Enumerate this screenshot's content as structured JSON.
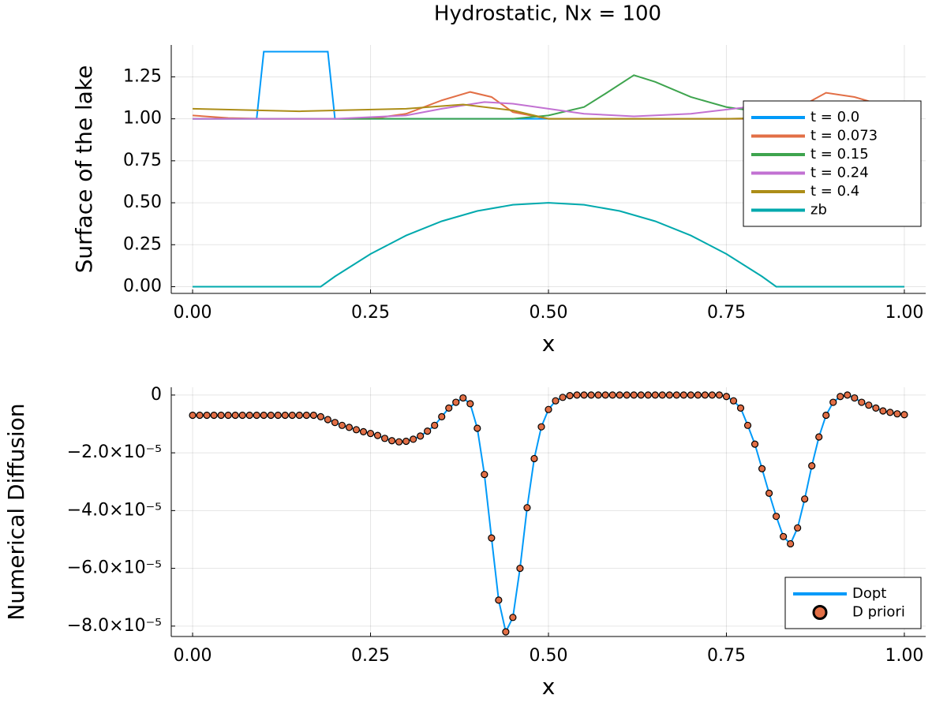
{
  "chart_data": [
    {
      "type": "line",
      "title": "Hydrostatic, Nx = 100",
      "xlabel": "x",
      "ylabel": "Surface of the lake",
      "xlim": [
        -0.03,
        1.03
      ],
      "ylim": [
        -0.04,
        1.44
      ],
      "xticks": [
        {
          "value": 0,
          "label": "0.00"
        },
        {
          "value": 0.25,
          "label": "0.25"
        },
        {
          "value": 0.5,
          "label": "0.50"
        },
        {
          "value": 0.75,
          "label": "0.75"
        },
        {
          "value": 1,
          "label": "1.00"
        }
      ],
      "yticks": [
        {
          "value": 0,
          "label": "0.00"
        },
        {
          "value": 0.25,
          "label": "0.25"
        },
        {
          "value": 0.5,
          "label": "0.50"
        },
        {
          "value": 0.75,
          "label": "0.75"
        },
        {
          "value": 1,
          "label": "1.00"
        },
        {
          "value": 1.25,
          "label": "1.25"
        }
      ],
      "grid": true,
      "legend": "topright",
      "series": [
        {
          "name": "t = 0.0",
          "color": "#009af9",
          "x": [
            0,
            0.09,
            0.1,
            0.19,
            0.2,
            1
          ],
          "values": [
            1,
            1,
            1.4,
            1.4,
            1,
            1
          ]
        },
        {
          "name": "t = 0.073",
          "color": "#e26f46",
          "x": [
            0,
            0.05,
            0.1,
            0.25,
            0.3,
            0.35,
            0.39,
            0.42,
            0.45,
            0.5,
            0.8,
            0.84,
            0.89,
            0.93,
            0.97,
            1
          ],
          "values": [
            1.02,
            1.005,
            1.0,
            1.0,
            1.03,
            1.11,
            1.16,
            1.13,
            1.04,
            1.0,
            1.0,
            1.04,
            1.155,
            1.13,
            1.08,
            1.04
          ]
        },
        {
          "name": "t = 0.15",
          "color": "#3ea44e",
          "x": [
            0,
            0.45,
            0.5,
            0.55,
            0.58,
            0.62,
            0.65,
            0.7,
            0.75,
            0.8,
            0.9,
            1
          ],
          "values": [
            1,
            1.0,
            1.02,
            1.07,
            1.15,
            1.26,
            1.22,
            1.13,
            1.07,
            1.04,
            1.02,
            1.01
          ]
        },
        {
          "name": "t = 0.24",
          "color": "#c271d2",
          "x": [
            0,
            0.2,
            0.3,
            0.35,
            0.41,
            0.45,
            0.5,
            0.55,
            0.62,
            0.7,
            0.8,
            0.9,
            1
          ],
          "values": [
            1.0,
            1.0,
            1.02,
            1.06,
            1.1,
            1.09,
            1.06,
            1.03,
            1.015,
            1.03,
            1.08,
            1.07,
            1.04
          ]
        },
        {
          "name": "t = 0.4",
          "color": "#ac8d18",
          "x": [
            0,
            0.15,
            0.3,
            0.38,
            0.45,
            0.5,
            0.75,
            0.85,
            0.95,
            1
          ],
          "values": [
            1.06,
            1.045,
            1.06,
            1.085,
            1.05,
            1.0,
            1.0,
            1.01,
            1.04,
            1.06
          ]
        },
        {
          "name": "zb",
          "color": "#00a9ad",
          "x": [
            0,
            0.18,
            0.2,
            0.25,
            0.3,
            0.35,
            0.4,
            0.45,
            0.5,
            0.55,
            0.6,
            0.65,
            0.7,
            0.75,
            0.8,
            0.82,
            1
          ],
          "values": [
            0,
            0,
            0.061,
            0.195,
            0.305,
            0.39,
            0.451,
            0.488,
            0.5,
            0.488,
            0.451,
            0.39,
            0.305,
            0.195,
            0.061,
            0,
            0
          ]
        }
      ]
    },
    {
      "type": "line",
      "xlabel": "x",
      "ylabel": "Numerical Diffusion",
      "xlim": [
        -0.03,
        1.03
      ],
      "ylim": [
        -8.36e-05,
        2.7e-06
      ],
      "xticks": [
        {
          "value": 0,
          "label": "0.00"
        },
        {
          "value": 0.25,
          "label": "0.25"
        },
        {
          "value": 0.5,
          "label": "0.50"
        },
        {
          "value": 0.75,
          "label": "0.75"
        },
        {
          "value": 1,
          "label": "1.00"
        }
      ],
      "yticks": [
        0,
        {
          "value": -2e-05,
          "label": "−2.0×10⁻⁵"
        },
        {
          "value": -4e-05,
          "label": "−4.0×10⁻⁵"
        },
        {
          "value": -6e-05,
          "label": "−6.0×10⁻⁵"
        },
        {
          "value": -8e-05,
          "label": "−8.0×10⁻⁵"
        }
      ],
      "grid": true,
      "legend": "bottomright",
      "x": [
        0,
        0.01,
        0.02,
        0.03,
        0.04,
        0.05,
        0.06,
        0.07,
        0.08,
        0.09,
        0.1,
        0.11,
        0.12,
        0.13,
        0.14,
        0.15,
        0.16,
        0.17,
        0.18,
        0.19,
        0.2,
        0.21,
        0.22,
        0.23,
        0.24,
        0.25,
        0.26,
        0.27,
        0.28,
        0.29,
        0.3,
        0.31,
        0.32,
        0.33,
        0.34,
        0.35,
        0.36,
        0.37,
        0.38,
        0.39,
        0.4,
        0.41,
        0.42,
        0.43,
        0.44,
        0.45,
        0.46,
        0.47,
        0.48,
        0.49,
        0.5,
        0.51,
        0.52,
        0.53,
        0.54,
        0.55,
        0.56,
        0.57,
        0.58,
        0.59,
        0.6,
        0.61,
        0.62,
        0.63,
        0.64,
        0.65,
        0.66,
        0.67,
        0.68,
        0.69,
        0.7,
        0.71,
        0.72,
        0.73,
        0.74,
        0.75,
        0.76,
        0.77,
        0.78,
        0.79,
        0.8,
        0.81,
        0.82,
        0.83,
        0.84,
        0.85,
        0.86,
        0.87,
        0.88,
        0.89,
        0.9,
        0.91,
        0.92,
        0.93,
        0.94,
        0.95,
        0.96,
        0.97,
        0.98,
        0.99,
        1
      ],
      "series": [
        {
          "name": "Dopt",
          "color": "#009af9",
          "mode": "lines",
          "values": [
            -7e-06,
            -7e-06,
            -7e-06,
            -7e-06,
            -7e-06,
            -7e-06,
            -7e-06,
            -7e-06,
            -7e-06,
            -7e-06,
            -7e-06,
            -7e-06,
            -7e-06,
            -7e-06,
            -7e-06,
            -7e-06,
            -7e-06,
            -7e-06,
            -7.5e-06,
            -8.5e-06,
            -9.5e-06,
            -1.05e-05,
            -1.12e-05,
            -1.2e-05,
            -1.27e-05,
            -1.33e-05,
            -1.4e-05,
            -1.5e-05,
            -1.58e-05,
            -1.62e-05,
            -1.6e-05,
            -1.53e-05,
            -1.42e-05,
            -1.25e-05,
            -1.05e-05,
            -7.5e-06,
            -4.5e-06,
            -2.5e-06,
            -1e-06,
            -3e-06,
            -1.15e-05,
            -2.75e-05,
            -4.95e-05,
            -7.1e-05,
            -8.2e-05,
            -7.7e-05,
            -6e-05,
            -3.9e-05,
            -2.2e-05,
            -1.1e-05,
            -5e-06,
            -2e-06,
            -8e-07,
            -2e-07,
            0,
            0,
            0,
            0,
            0,
            0,
            0,
            0,
            0,
            0,
            0,
            0,
            0,
            0,
            0,
            0,
            0,
            0,
            0,
            0,
            0,
            -5e-07,
            -2e-06,
            -4.5e-06,
            -1.05e-05,
            -1.7e-05,
            -2.55e-05,
            -3.4e-05,
            -4.2e-05,
            -4.9e-05,
            -5.15e-05,
            -4.6e-05,
            -3.6e-05,
            -2.45e-05,
            -1.45e-05,
            -7e-06,
            -2.5e-06,
            -5e-07,
            0,
            -1e-06,
            -2.5e-06,
            -3.5e-06,
            -4.5e-06,
            -5.5e-06,
            -6e-06,
            -6.5e-06,
            -6.8e-06
          ]
        },
        {
          "name": "D priori",
          "color": "#e26f46",
          "mode": "markers",
          "values": [
            -7e-06,
            -7e-06,
            -7e-06,
            -7e-06,
            -7e-06,
            -7e-06,
            -7e-06,
            -7e-06,
            -7e-06,
            -7e-06,
            -7e-06,
            -7e-06,
            -7e-06,
            -7e-06,
            -7e-06,
            -7e-06,
            -7e-06,
            -7e-06,
            -7.5e-06,
            -8.5e-06,
            -9.5e-06,
            -1.05e-05,
            -1.12e-05,
            -1.2e-05,
            -1.27e-05,
            -1.33e-05,
            -1.4e-05,
            -1.5e-05,
            -1.58e-05,
            -1.62e-05,
            -1.6e-05,
            -1.53e-05,
            -1.42e-05,
            -1.25e-05,
            -1.05e-05,
            -7.5e-06,
            -4.5e-06,
            -2.5e-06,
            -1e-06,
            -3e-06,
            -1.15e-05,
            -2.75e-05,
            -4.95e-05,
            -7.1e-05,
            -8.2e-05,
            -7.7e-05,
            -6e-05,
            -3.9e-05,
            -2.2e-05,
            -1.1e-05,
            -5e-06,
            -2e-06,
            -8e-07,
            -2e-07,
            0,
            0,
            0,
            0,
            0,
            0,
            0,
            0,
            0,
            0,
            0,
            0,
            0,
            0,
            0,
            0,
            0,
            0,
            0,
            0,
            0,
            -5e-07,
            -2e-06,
            -4.5e-06,
            -1.05e-05,
            -1.7e-05,
            -2.55e-05,
            -3.4e-05,
            -4.2e-05,
            -4.9e-05,
            -5.15e-05,
            -4.6e-05,
            -3.6e-05,
            -2.45e-05,
            -1.45e-05,
            -7e-06,
            -2.5e-06,
            -5e-07,
            0,
            -1e-06,
            -2.5e-06,
            -3.5e-06,
            -4.5e-06,
            -5.5e-06,
            -6e-06,
            -6.5e-06,
            -6.8e-06
          ]
        }
      ]
    }
  ]
}
